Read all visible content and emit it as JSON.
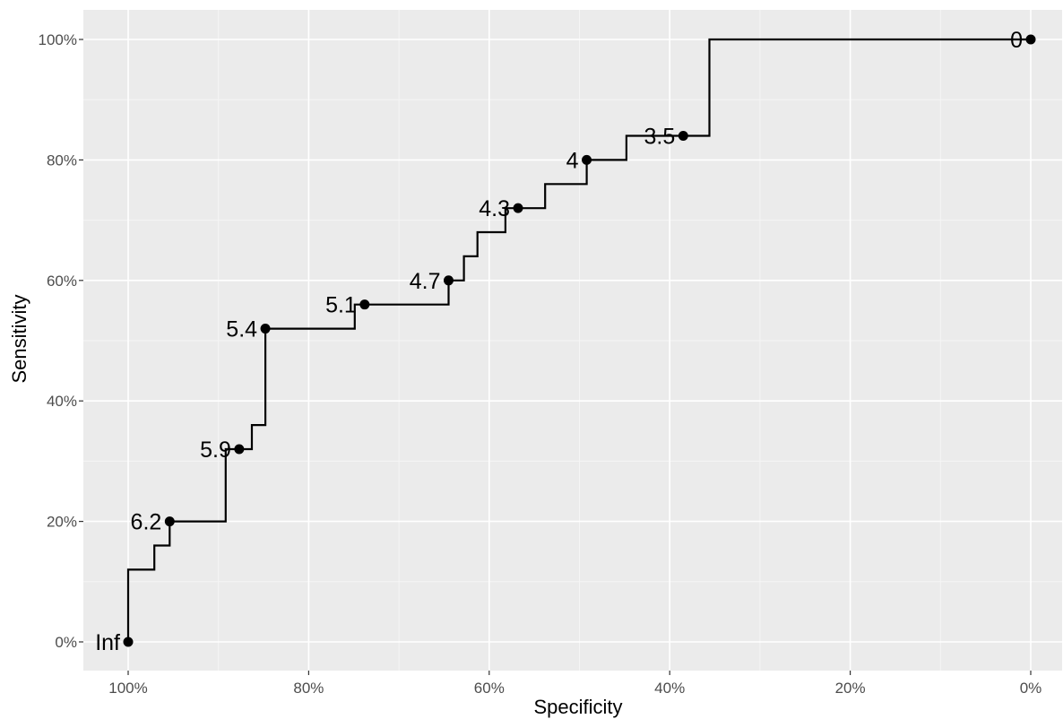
{
  "chart_data": {
    "type": "line",
    "title": "",
    "xlabel": "Specificity",
    "ylabel": "Sensitivity",
    "x_reversed": true,
    "xlim": [
      0,
      1
    ],
    "ylim": [
      0,
      1
    ],
    "grid": true,
    "legend": "none",
    "x_ticks": [
      {
        "value": 1.0,
        "label": "100%"
      },
      {
        "value": 0.8,
        "label": "80%"
      },
      {
        "value": 0.6,
        "label": "60%"
      },
      {
        "value": 0.4,
        "label": "40%"
      },
      {
        "value": 0.2,
        "label": "20%"
      },
      {
        "value": 0.0,
        "label": "0%"
      }
    ],
    "y_ticks": [
      {
        "value": 0.0,
        "label": "0%"
      },
      {
        "value": 0.2,
        "label": "20%"
      },
      {
        "value": 0.4,
        "label": "40%"
      },
      {
        "value": 0.6,
        "label": "60%"
      },
      {
        "value": 0.8,
        "label": "80%"
      },
      {
        "value": 1.0,
        "label": "100%"
      }
    ],
    "roc_curve": {
      "specificity": [
        1.0,
        1.0,
        0.971,
        0.971,
        0.954,
        0.954,
        0.892,
        0.892,
        0.877,
        0.863,
        0.863,
        0.848,
        0.848,
        0.749,
        0.749,
        0.645,
        0.645,
        0.628,
        0.628,
        0.613,
        0.613,
        0.582,
        0.582,
        0.538,
        0.538,
        0.492,
        0.492,
        0.448,
        0.448,
        0.356,
        0.356,
        0.0
      ],
      "sensitivity": [
        0.0,
        0.12,
        0.12,
        0.16,
        0.16,
        0.2,
        0.2,
        0.32,
        0.32,
        0.32,
        0.36,
        0.36,
        0.52,
        0.52,
        0.56,
        0.56,
        0.6,
        0.6,
        0.64,
        0.64,
        0.68,
        0.68,
        0.72,
        0.72,
        0.76,
        0.76,
        0.8,
        0.8,
        0.84,
        0.84,
        1.0,
        1.0
      ]
    },
    "thresholds": [
      {
        "label": "Inf",
        "specificity": 1.0,
        "sensitivity": 0.0
      },
      {
        "label": "6.2",
        "specificity": 0.954,
        "sensitivity": 0.2
      },
      {
        "label": "5.9",
        "specificity": 0.877,
        "sensitivity": 0.32
      },
      {
        "label": "5.4",
        "specificity": 0.848,
        "sensitivity": 0.52
      },
      {
        "label": "5.1",
        "specificity": 0.738,
        "sensitivity": 0.56
      },
      {
        "label": "4.7",
        "specificity": 0.645,
        "sensitivity": 0.6
      },
      {
        "label": "4.3",
        "specificity": 0.568,
        "sensitivity": 0.72
      },
      {
        "label": "4",
        "specificity": 0.492,
        "sensitivity": 0.8
      },
      {
        "label": "3.5",
        "specificity": 0.385,
        "sensitivity": 0.84
      },
      {
        "label": "0",
        "specificity": 0.0,
        "sensitivity": 1.0
      }
    ],
    "colors": {
      "panel_background": "#EBEBEB",
      "grid_major": "#FFFFFF",
      "curve": "#000000",
      "points": "#000000"
    }
  }
}
